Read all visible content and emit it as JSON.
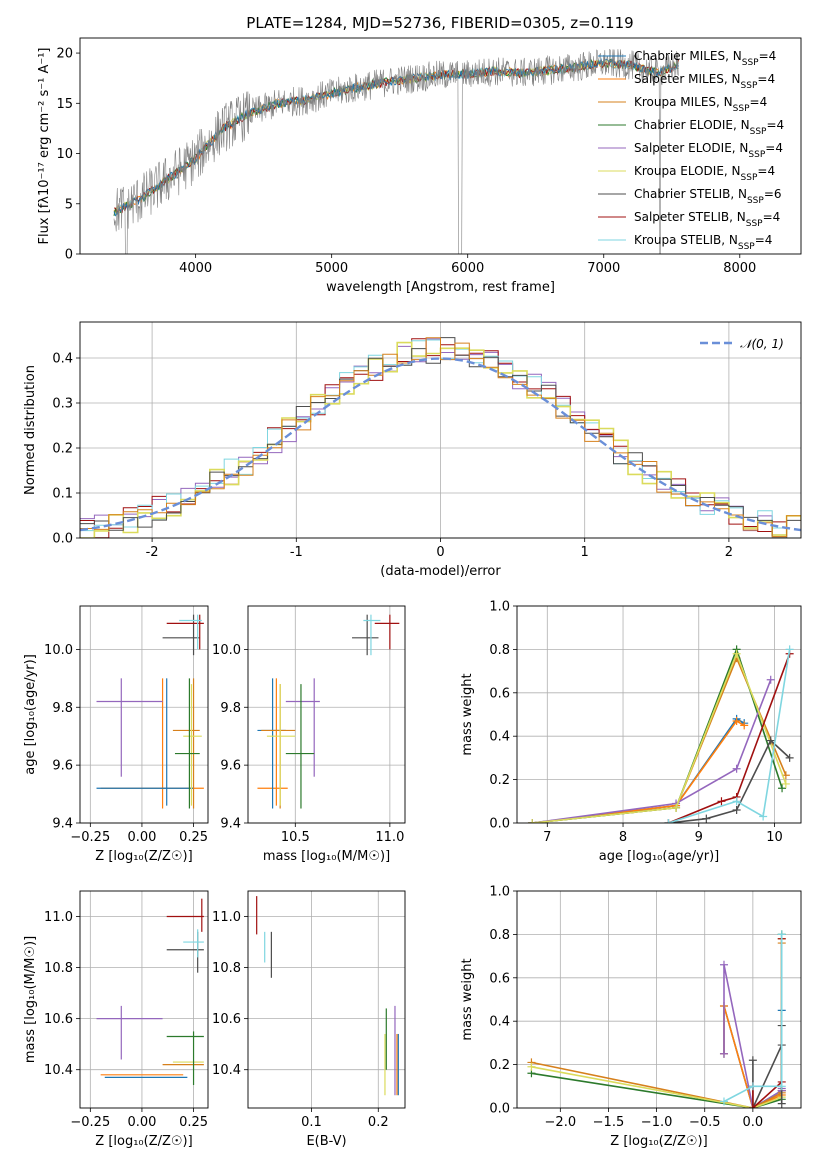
{
  "figure_title": "PLATE=1284, MJD=52736, FIBERID=0305, z=0.119",
  "models": [
    {
      "name": "Chabrier MILES, N",
      "sub": "SSP",
      "tail": "=4",
      "color": "#1f77b4"
    },
    {
      "name": "Salpeter MILES, N",
      "sub": "SSP",
      "tail": "=4",
      "color": "#ff7f0e"
    },
    {
      "name": "Kroupa MILES, N",
      "sub": "SSP",
      "tail": "=4",
      "color": "#d6801c"
    },
    {
      "name": "Chabrier ELODIE, N",
      "sub": "SSP",
      "tail": "=4",
      "color": "#2c7a2c"
    },
    {
      "name": "Salpeter ELODIE, N",
      "sub": "SSP",
      "tail": "=4",
      "color": "#9467bd"
    },
    {
      "name": "Kroupa ELODIE, N",
      "sub": "SSP",
      "tail": "=4",
      "color": "#dbdb5c"
    },
    {
      "name": "Chabrier STELIB, N",
      "sub": "SSP",
      "tail": "=6",
      "color": "#4d4d4d"
    },
    {
      "name": "Salpeter STELIB, N",
      "sub": "SSP",
      "tail": "=4",
      "color": "#a01010"
    },
    {
      "name": "Kroupa STELIB, N",
      "sub": "SSP",
      "tail": "=4",
      "color": "#7fd6e0"
    }
  ],
  "chart_data": [
    {
      "id": "spectrum",
      "type": "line",
      "xlabel": "wavelength [Angstrom, rest frame]",
      "ylabel": "Flux [fλ10⁻¹⁷ erg cm⁻² s⁻¹ A⁻¹]",
      "xlim": [
        3150,
        8450
      ],
      "ylim": [
        0,
        21.5
      ],
      "xticks": [
        4000,
        5000,
        6000,
        7000,
        8000
      ],
      "yticks": [
        0,
        5,
        10,
        15,
        20
      ],
      "grid": false,
      "legend": "upper-right",
      "spectrum_range": [
        3400,
        7550
      ],
      "continuum": [
        [
          3400,
          4.2
        ],
        [
          3600,
          5.5
        ],
        [
          3800,
          7.5
        ],
        [
          4000,
          9.5
        ],
        [
          4200,
          12.5
        ],
        [
          4400,
          14.0
        ],
        [
          4600,
          15.0
        ],
        [
          4800,
          15.3
        ],
        [
          5000,
          16.0
        ],
        [
          5200,
          16.6
        ],
        [
          5400,
          17.1
        ],
        [
          5600,
          17.5
        ],
        [
          5800,
          17.8
        ],
        [
          6000,
          17.9
        ],
        [
          6200,
          18.2
        ],
        [
          6400,
          18.0
        ],
        [
          6600,
          18.3
        ],
        [
          6800,
          18.6
        ],
        [
          7000,
          19.0
        ],
        [
          7200,
          18.8
        ],
        [
          7400,
          18.0
        ],
        [
          7550,
          18.9
        ]
      ]
    },
    {
      "id": "residuals",
      "type": "line",
      "xlabel": "(data-model)/error",
      "ylabel": "Normed distribution",
      "xlim": [
        -2.5,
        2.5
      ],
      "ylim": [
        0,
        0.48
      ],
      "xticks": [
        -2,
        -1,
        0,
        1,
        2
      ],
      "yticks": [
        0.0,
        0.1,
        0.2,
        0.3,
        0.4
      ],
      "grid": true,
      "legend": "upper-right",
      "legend_label": "𝒩(0, 1)",
      "reference_color": "#6a8fd8"
    },
    {
      "id": "Z_vs_age",
      "type": "scatter",
      "xlabel": "Z [log₁₀(Z/Z☉)]",
      "ylabel": "age  [log₁₀(age/yr)]",
      "xlim": [
        -0.3,
        0.32
      ],
      "ylim": [
        9.4,
        10.15
      ],
      "xticks": [
        -0.25,
        0.0,
        0.25
      ],
      "xticklabels": [
        "−0.25",
        "0.00",
        "0.25"
      ],
      "yticks": [
        9.4,
        9.6,
        9.8,
        10.0
      ],
      "grid": true,
      "points": [
        {
          "x": 0.1,
          "xlo": -0.2,
          "xhi": 0.3,
          "y": 9.52,
          "ylo": 9.45,
          "yhi": 9.9,
          "c": 2
        },
        {
          "x": 0.12,
          "xlo": -0.22,
          "xhi": 0.25,
          "y": 9.52,
          "ylo": 9.46,
          "yhi": 9.9,
          "c": 1
        },
        {
          "x": -0.1,
          "xlo": -0.22,
          "xhi": 0.1,
          "y": 9.82,
          "ylo": 9.56,
          "yhi": 9.9,
          "c": 5
        },
        {
          "x": 0.25,
          "xlo": 0.15,
          "xhi": 0.28,
          "y": 9.72,
          "ylo": 9.45,
          "yhi": 9.9,
          "c": 3
        },
        {
          "x": 0.24,
          "xlo": 0.2,
          "xhi": 0.29,
          "y": 9.7,
          "ylo": 9.46,
          "yhi": 9.88,
          "c": 6
        },
        {
          "x": 0.23,
          "xlo": 0.16,
          "xhi": 0.28,
          "y": 9.64,
          "ylo": 9.45,
          "yhi": 9.9,
          "c": 4
        },
        {
          "x": 0.25,
          "xlo": 0.1,
          "xhi": 0.28,
          "y": 10.04,
          "ylo": 9.98,
          "yhi": 10.12,
          "c": 7
        },
        {
          "x": 0.28,
          "xlo": 0.12,
          "xhi": 0.3,
          "y": 10.09,
          "ylo": 10.0,
          "yhi": 10.12,
          "c": 8
        },
        {
          "x": 0.27,
          "xlo": 0.18,
          "xhi": 0.29,
          "y": 10.1,
          "ylo": 10.0,
          "yhi": 10.12,
          "c": 9
        }
      ]
    },
    {
      "id": "mass_vs_age",
      "type": "scatter",
      "xlabel": "mass [log₁₀(M/M☉)]",
      "ylabel": "",
      "xlim": [
        10.25,
        11.08
      ],
      "ylim": [
        9.4,
        10.15
      ],
      "xticks": [
        10.5,
        11.0
      ],
      "xticklabels": [
        "10.5",
        "11.0"
      ],
      "yticks": [
        9.4,
        9.6,
        9.8,
        10.0
      ],
      "grid": true,
      "points": [
        {
          "x": 10.4,
          "xlo": 10.3,
          "xhi": 10.46,
          "y": 9.52,
          "ylo": 9.46,
          "yhi": 9.9,
          "c": 2
        },
        {
          "x": 10.38,
          "xlo": 10.3,
          "xhi": 10.45,
          "y": 9.72,
          "ylo": 9.45,
          "yhi": 9.9,
          "c": 1
        },
        {
          "x": 10.6,
          "xlo": 10.45,
          "xhi": 10.63,
          "y": 9.82,
          "ylo": 9.56,
          "yhi": 9.9,
          "c": 5
        },
        {
          "x": 10.42,
          "xlo": 10.32,
          "xhi": 10.5,
          "y": 9.72,
          "ylo": 9.45,
          "yhi": 9.88,
          "c": 3
        },
        {
          "x": 10.42,
          "xlo": 10.35,
          "xhi": 10.5,
          "y": 9.7,
          "ylo": 9.46,
          "yhi": 9.88,
          "c": 6
        },
        {
          "x": 10.53,
          "xlo": 10.45,
          "xhi": 10.6,
          "y": 9.64,
          "ylo": 9.45,
          "yhi": 9.88,
          "c": 4
        },
        {
          "x": 10.88,
          "xlo": 10.8,
          "xhi": 10.94,
          "y": 10.04,
          "ylo": 9.98,
          "yhi": 10.12,
          "c": 7
        },
        {
          "x": 11.0,
          "xlo": 10.92,
          "xhi": 11.05,
          "y": 10.09,
          "ylo": 10.0,
          "yhi": 10.12,
          "c": 8
        },
        {
          "x": 10.9,
          "xlo": 10.86,
          "xhi": 10.95,
          "y": 10.1,
          "ylo": 9.98,
          "yhi": 10.12,
          "c": 9
        }
      ]
    },
    {
      "id": "age_vs_weight",
      "type": "line",
      "xlabel": "age  [log₁₀(age/yr)]",
      "ylabel": "mass weight",
      "xlim": [
        6.6,
        10.35
      ],
      "ylim": [
        0,
        1.0
      ],
      "xticks": [
        7,
        8,
        9,
        10
      ],
      "yticks": [
        0.0,
        0.2,
        0.4,
        0.6,
        0.8,
        1.0
      ],
      "grid": true,
      "series": [
        {
          "c": 1,
          "x": [
            6.8,
            8.7,
            9.5,
            9.6
          ],
          "y": [
            0.0,
            0.08,
            0.48,
            0.46
          ]
        },
        {
          "c": 2,
          "x": [
            6.8,
            8.7,
            9.5,
            9.6
          ],
          "y": [
            0.0,
            0.08,
            0.47,
            0.45
          ]
        },
        {
          "c": 3,
          "x": [
            6.8,
            8.7,
            9.5,
            10.15
          ],
          "y": [
            0.0,
            0.07,
            0.76,
            0.22
          ]
        },
        {
          "c": 4,
          "x": [
            6.8,
            8.7,
            9.5,
            10.1
          ],
          "y": [
            0.0,
            0.07,
            0.8,
            0.16
          ]
        },
        {
          "c": 5,
          "x": [
            6.8,
            8.7,
            9.5,
            9.95
          ],
          "y": [
            0.0,
            0.09,
            0.25,
            0.66
          ]
        },
        {
          "c": 6,
          "x": [
            6.8,
            8.7,
            9.5,
            10.15
          ],
          "y": [
            0.0,
            0.07,
            0.78,
            0.18
          ]
        },
        {
          "c": 7,
          "x": [
            8.6,
            9.1,
            9.5,
            9.95,
            10.2
          ],
          "y": [
            0.0,
            0.02,
            0.06,
            0.38,
            0.3
          ]
        },
        {
          "c": 8,
          "x": [
            8.6,
            9.3,
            9.5,
            10.2
          ],
          "y": [
            0.0,
            0.1,
            0.12,
            0.78
          ]
        },
        {
          "c": 9,
          "x": [
            8.6,
            9.5,
            9.85,
            10.2
          ],
          "y": [
            0.0,
            0.1,
            0.03,
            0.8
          ]
        }
      ]
    },
    {
      "id": "Z_vs_mass",
      "type": "scatter",
      "xlabel": "Z [log₁₀(Z/Z☉)]",
      "ylabel": "mass [log₁₀(M/M☉)]",
      "xlim": [
        -0.3,
        0.32
      ],
      "ylim": [
        10.25,
        11.1
      ],
      "xticks": [
        -0.25,
        0.0,
        0.25
      ],
      "xticklabels": [
        "−0.25",
        "0.00",
        "0.25"
      ],
      "yticks": [
        10.4,
        10.6,
        10.8,
        11.0
      ],
      "grid": true,
      "points": [
        {
          "x": 0.1,
          "xlo": -0.2,
          "xhi": 0.2,
          "y": 10.38,
          "ylo": 10.38,
          "yhi": 10.38,
          "c": 2
        },
        {
          "x": 0.05,
          "xlo": -0.18,
          "xhi": 0.22,
          "y": 10.37,
          "ylo": 10.37,
          "yhi": 10.37,
          "c": 1
        },
        {
          "x": -0.1,
          "xlo": -0.22,
          "xhi": 0.1,
          "y": 10.6,
          "ylo": 10.44,
          "yhi": 10.65,
          "c": 5
        },
        {
          "x": 0.25,
          "xlo": 0.1,
          "xhi": 0.3,
          "y": 10.42,
          "ylo": 10.42,
          "yhi": 10.42,
          "c": 3
        },
        {
          "x": 0.23,
          "xlo": 0.15,
          "xhi": 0.3,
          "y": 10.43,
          "ylo": 10.43,
          "yhi": 10.43,
          "c": 6
        },
        {
          "x": 0.25,
          "xlo": 0.12,
          "xhi": 0.3,
          "y": 10.53,
          "ylo": 10.34,
          "yhi": 10.55,
          "c": 4
        },
        {
          "x": 0.27,
          "xlo": 0.12,
          "xhi": 0.3,
          "y": 10.87,
          "ylo": 10.78,
          "yhi": 10.94,
          "c": 7
        },
        {
          "x": 0.29,
          "xlo": 0.12,
          "xhi": 0.3,
          "y": 11.0,
          "ylo": 10.94,
          "yhi": 11.07,
          "c": 8
        },
        {
          "x": 0.27,
          "xlo": 0.2,
          "xhi": 0.3,
          "y": 10.9,
          "ylo": 10.84,
          "yhi": 10.95,
          "c": 9
        }
      ]
    },
    {
      "id": "ebv_vs_mass",
      "type": "scatter",
      "xlabel": "E(B-V)",
      "ylabel": "",
      "xlim": [
        0.005,
        0.24
      ],
      "ylim": [
        10.25,
        11.1
      ],
      "xticks": [
        0.1,
        0.2
      ],
      "xticklabels": [
        "0.1",
        "0.2"
      ],
      "yticks": [
        10.4,
        10.6,
        10.8,
        11.0
      ],
      "grid": true,
      "points": [
        {
          "x": 0.21,
          "xlo": 0.21,
          "xhi": 0.21,
          "y": 10.42,
          "ylo": 10.3,
          "yhi": 10.54,
          "c": 6
        },
        {
          "x": 0.212,
          "xlo": 0.212,
          "xhi": 0.212,
          "y": 10.52,
          "ylo": 10.4,
          "yhi": 10.64,
          "c": 4
        },
        {
          "x": 0.225,
          "xlo": 0.225,
          "xhi": 0.225,
          "y": 10.45,
          "ylo": 10.3,
          "yhi": 10.65,
          "c": 5
        },
        {
          "x": 0.228,
          "xlo": 0.228,
          "xhi": 0.228,
          "y": 10.4,
          "ylo": 10.3,
          "yhi": 10.54,
          "c": 2
        },
        {
          "x": 0.23,
          "xlo": 0.23,
          "xhi": 0.23,
          "y": 10.42,
          "ylo": 10.3,
          "yhi": 10.54,
          "c": 1
        },
        {
          "x": 0.018,
          "xlo": 0.018,
          "xhi": 0.018,
          "y": 11.0,
          "ylo": 10.93,
          "yhi": 11.08,
          "c": 8
        },
        {
          "x": 0.03,
          "xlo": 0.03,
          "xhi": 0.03,
          "y": 10.88,
          "ylo": 10.82,
          "yhi": 10.94,
          "c": 9
        },
        {
          "x": 0.04,
          "xlo": 0.04,
          "xhi": 0.04,
          "y": 10.86,
          "ylo": 10.76,
          "yhi": 10.94,
          "c": 7
        }
      ]
    },
    {
      "id": "Z_vs_weight",
      "type": "line",
      "xlabel": "Z [log₁₀(Z/Z☉)]",
      "ylabel": "mass weight",
      "xlim": [
        -2.45,
        0.5
      ],
      "ylim": [
        0,
        1.0
      ],
      "xticks": [
        -2.0,
        -1.5,
        -1.0,
        -0.5,
        0.0
      ],
      "xticklabels": [
        "−2.0",
        "−1.5",
        "−1.0",
        "−0.5",
        "0.0"
      ],
      "yticks": [
        0.0,
        0.2,
        0.4,
        0.6,
        0.8,
        1.0
      ],
      "grid": true,
      "series": [
        {
          "c": 1,
          "x": [
            -0.3,
            -0.3,
            0.0,
            0.3,
            0.3
          ],
          "y": [
            0.25,
            0.47,
            0.0,
            0.08,
            0.45
          ]
        },
        {
          "c": 2,
          "x": [
            -0.3,
            -0.3,
            0.0,
            0.3,
            0.3
          ],
          "y": [
            0.25,
            0.47,
            0.0,
            0.06,
            0.08
          ]
        },
        {
          "c": 5,
          "x": [
            -0.3,
            -0.3,
            0.0,
            0.3,
            0.3
          ],
          "y": [
            0.25,
            0.66,
            0.0,
            0.08,
            0.09
          ]
        },
        {
          "c": 3,
          "x": [
            -2.3,
            0.0,
            0.3,
            0.3
          ],
          "y": [
            0.21,
            0.0,
            0.07,
            0.76
          ]
        },
        {
          "c": 4,
          "x": [
            -2.3,
            0.0,
            0.3,
            0.3
          ],
          "y": [
            0.16,
            0.0,
            0.04,
            0.8
          ]
        },
        {
          "c": 6,
          "x": [
            -2.3,
            0.0,
            0.3,
            0.3
          ],
          "y": [
            0.19,
            0.0,
            0.05,
            0.78
          ]
        },
        {
          "c": 7,
          "x": [
            0.0,
            0.0,
            0.3,
            0.3,
            0.3
          ],
          "y": [
            0.22,
            0.0,
            0.29,
            0.38,
            0.02
          ]
        },
        {
          "c": 8,
          "x": [
            0.0,
            0.0,
            0.3,
            0.3
          ],
          "y": [
            0.1,
            0.0,
            0.12,
            0.78
          ]
        },
        {
          "c": 9,
          "x": [
            -0.3,
            0.0,
            0.3,
            0.3
          ],
          "y": [
            0.03,
            0.1,
            0.1,
            0.8
          ]
        }
      ]
    }
  ]
}
